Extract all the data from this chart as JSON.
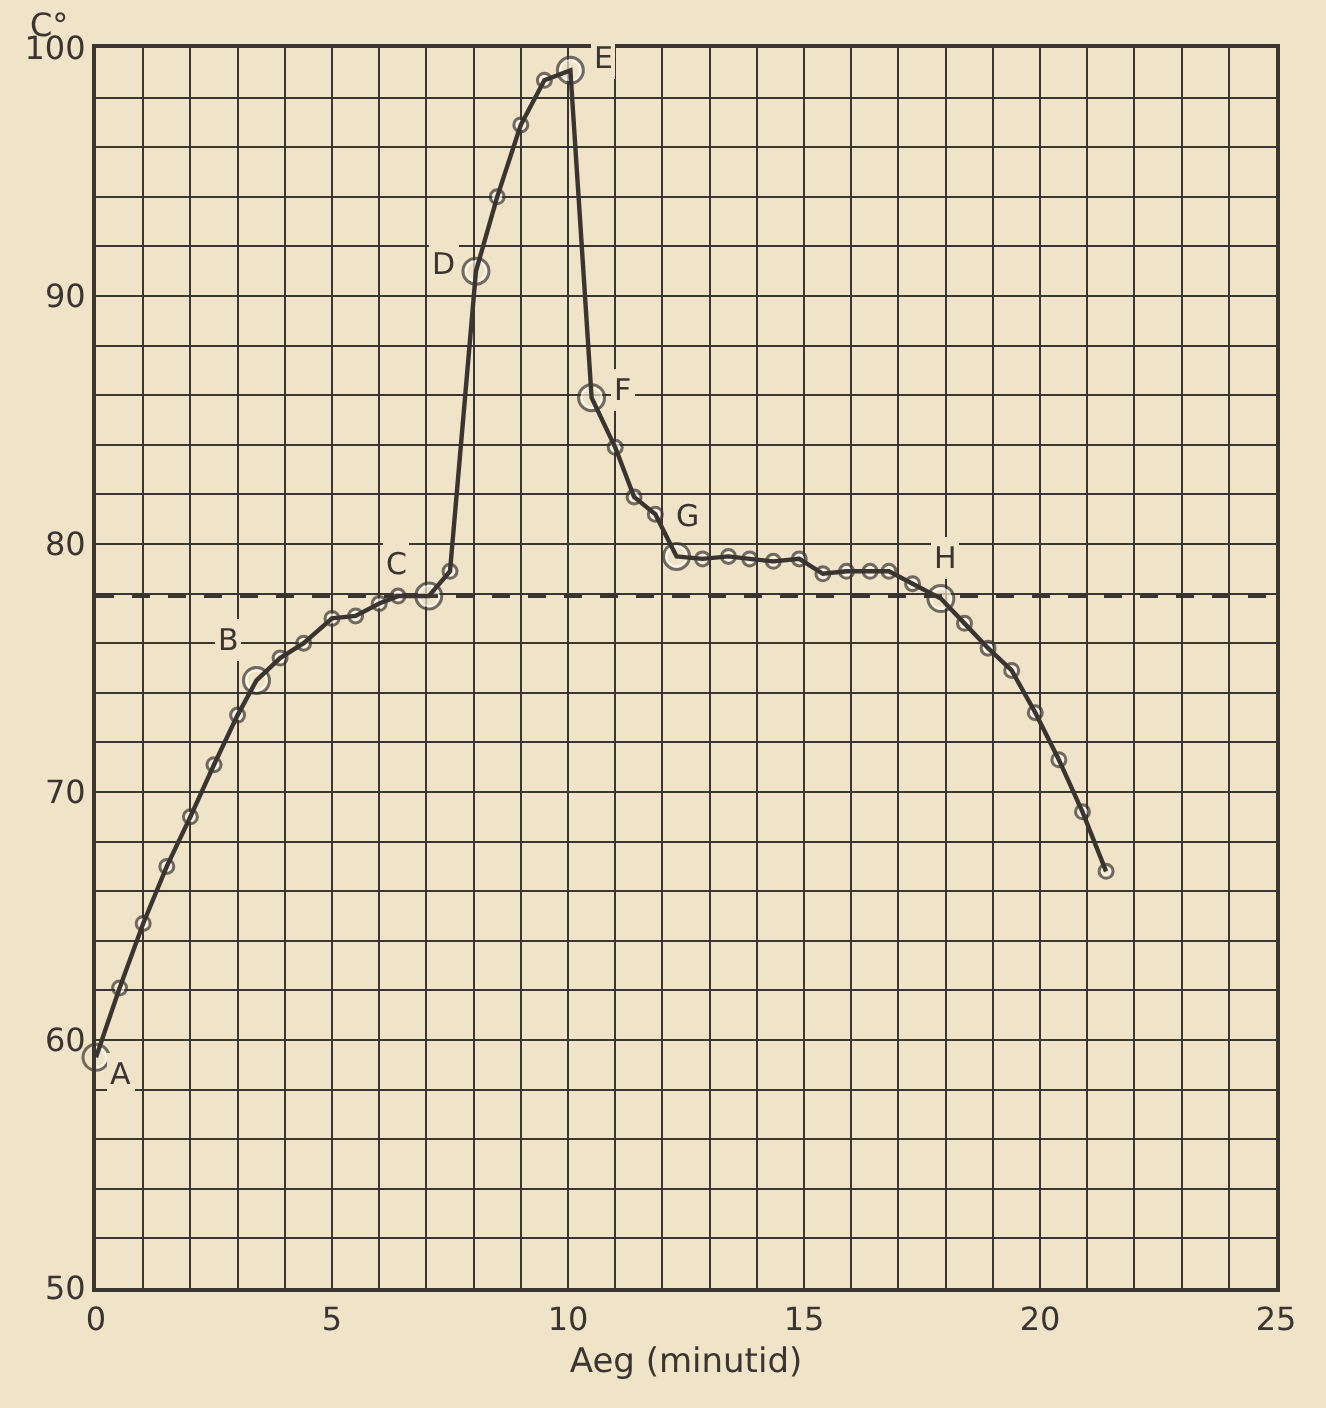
{
  "chart_data": {
    "type": "line",
    "xlabel": "Aeg (minutid)",
    "ylabel": "C°",
    "x": [
      0,
      0.5,
      1,
      1.5,
      2,
      2.5,
      3,
      3.4,
      3.9,
      4.4,
      5,
      5.5,
      6,
      6.4,
      7.05,
      7.5,
      8.05,
      8.5,
      9,
      9.5,
      10.05,
      10.5,
      11,
      11.4,
      11.85,
      12.3,
      12.85,
      13.4,
      13.85,
      14.35,
      14.9,
      15.4,
      15.9,
      16.4,
      16.8,
      17.3,
      17.9,
      18.4,
      18.9,
      19.4,
      19.9,
      20.4,
      20.9,
      21.4
    ],
    "series": [
      {
        "color": "#3a3530",
        "values": [
          59.3,
          62.1,
          64.7,
          67.0,
          69.0,
          71.1,
          73.1,
          74.5,
          75.4,
          76.0,
          77.0,
          77.1,
          77.6,
          77.9,
          77.9,
          78.9,
          91.0,
          94.0,
          96.9,
          98.7,
          99.1,
          85.9,
          83.9,
          81.9,
          81.2,
          79.5,
          79.4,
          79.5,
          79.4,
          79.3,
          79.4,
          78.8,
          78.9,
          78.9,
          78.9,
          78.4,
          77.8,
          76.8,
          75.8,
          74.9,
          73.2,
          71.3,
          69.2,
          66.8
        ]
      }
    ],
    "marker": "circle",
    "line_style": "solid",
    "grid": true,
    "legend": false,
    "xlim": [
      0,
      25
    ],
    "ylim": [
      50,
      100
    ],
    "xticks": [
      0,
      {
        "value": 1,
        "label": null
      },
      {
        "value": 2,
        "label": null
      },
      {
        "value": 3,
        "label": null
      },
      {
        "value": 4,
        "label": null
      },
      5,
      {
        "value": 6,
        "label": null
      },
      {
        "value": 7,
        "label": null
      },
      {
        "value": 8,
        "label": null
      },
      {
        "value": 9,
        "label": null
      },
      10,
      {
        "value": 11,
        "label": null
      },
      {
        "value": 12,
        "label": null
      },
      {
        "value": 13,
        "label": null
      },
      {
        "value": 14,
        "label": null
      },
      15,
      {
        "value": 16,
        "label": null
      },
      {
        "value": 17,
        "label": null
      },
      {
        "value": 18,
        "label": null
      },
      {
        "value": 19,
        "label": null
      },
      20,
      {
        "value": 21,
        "label": null
      },
      {
        "value": 22,
        "label": null
      },
      {
        "value": 23,
        "label": null
      },
      {
        "value": 24,
        "label": null
      },
      25
    ],
    "yticks": [
      50,
      {
        "value": 52,
        "label": null
      },
      {
        "value": 54,
        "label": null
      },
      {
        "value": 56,
        "label": null
      },
      {
        "value": 58,
        "label": null
      },
      60,
      {
        "value": 62,
        "label": null
      },
      {
        "value": 64,
        "label": null
      },
      {
        "value": 66,
        "label": null
      },
      {
        "value": 68,
        "label": null
      },
      70,
      {
        "value": 72,
        "label": null
      },
      {
        "value": 74,
        "label": null
      },
      {
        "value": 76,
        "label": null
      },
      {
        "value": 78,
        "label": null
      },
      80,
      {
        "value": 82,
        "label": null
      },
      {
        "value": 84,
        "label": null
      },
      {
        "value": 86,
        "label": null
      },
      {
        "value": 88,
        "label": null
      },
      90,
      {
        "value": 92,
        "label": null
      },
      {
        "value": 94,
        "label": null
      },
      {
        "value": 96,
        "label": null
      },
      {
        "value": 98,
        "label": null
      },
      100
    ],
    "ref_lines": [
      {
        "axis": "y",
        "value": 77.9,
        "line_style": "dashed",
        "color": "#3a3530"
      }
    ],
    "annotations": [
      {
        "text": "A",
        "x": 0,
        "y": 59.3
      },
      {
        "text": "B",
        "x": 3.4,
        "y": 74.5
      },
      {
        "text": "C",
        "x": 7.05,
        "y": 77.9
      },
      {
        "text": "D",
        "x": 8.05,
        "y": 91.0
      },
      {
        "text": "E",
        "x": 10.05,
        "y": 99.1
      },
      {
        "text": "F",
        "x": 10.5,
        "y": 85.9
      },
      {
        "text": "G",
        "x": 12.3,
        "y": 79.5
      },
      {
        "text": "H",
        "x": 17.9,
        "y": 77.8
      }
    ]
  }
}
